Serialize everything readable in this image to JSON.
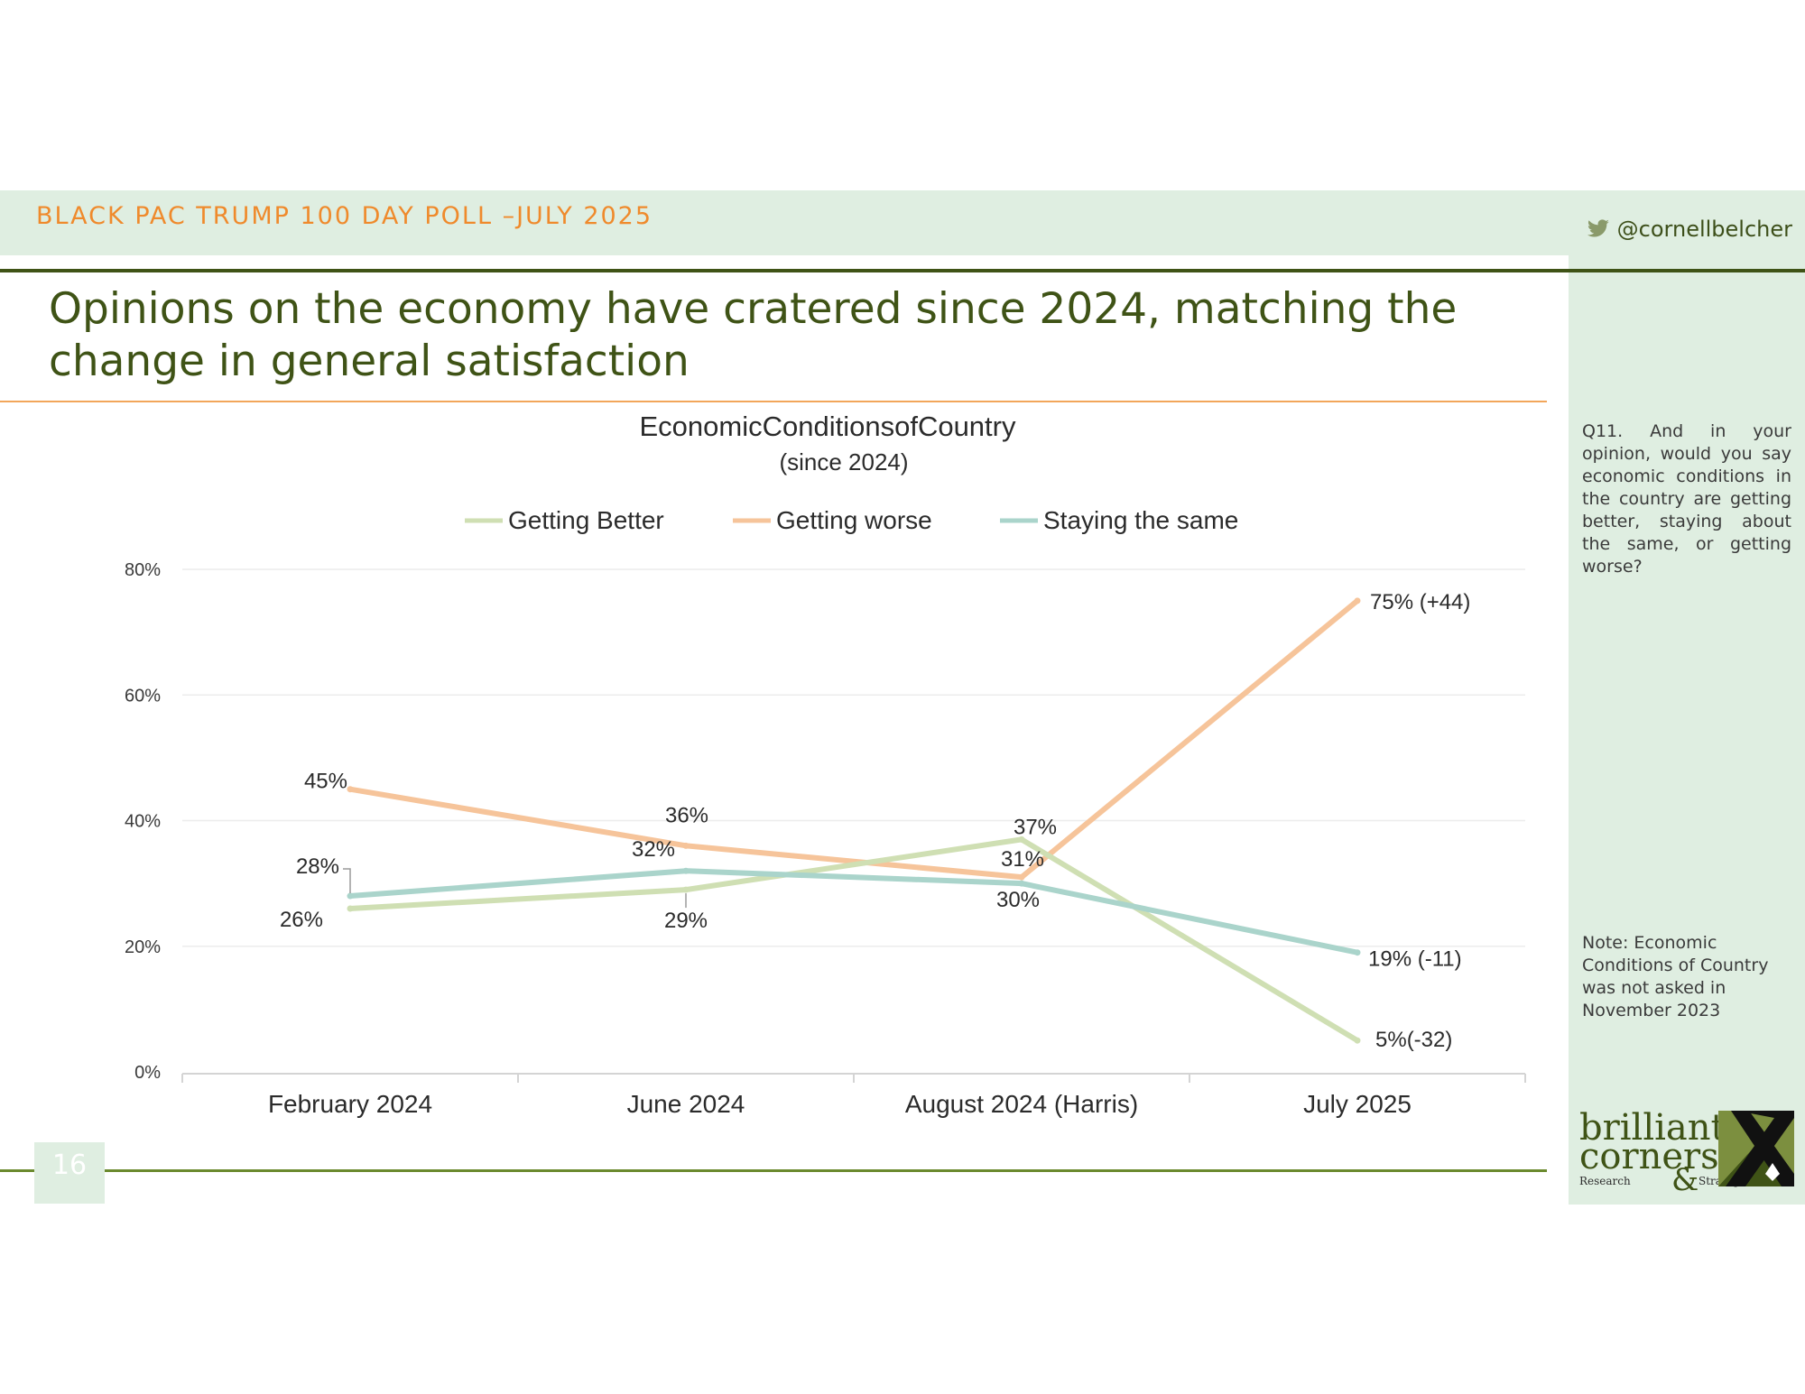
{
  "header": {
    "title": "BLACK PAC TRUMP 100 DAY POLL –JULY 2025",
    "handle": "@cornellbelcher"
  },
  "slide": {
    "title": "Opinions on the economy have cratered since 2024, matching the change in general satisfaction",
    "question": "Q11. And in your opinion, would you say economic conditions in the country are getting better, staying about the same, or getting worse?",
    "note": "Note: Economic Conditions of Country was not asked in November 2023",
    "page_number": "16"
  },
  "logo": {
    "line1": "brilliant",
    "line2": "corners",
    "amp": "&",
    "sub_left": "Research",
    "sub_right": "Strategies"
  },
  "colors": {
    "getting_better": "#cfdfb3",
    "getting_worse": "#f6c49a",
    "staying_same": "#aad4cb",
    "brand_green": "#3f5316",
    "brand_orange": "#ef8a2c",
    "panel_bg": "#dfeee1"
  },
  "chart_data": {
    "type": "line",
    "title": "EconomicConditionsofCountry",
    "subtitle": "(since 2024)",
    "categories": [
      "February 2024",
      "June 2024",
      "August 2024 (Harris)",
      "July 2025"
    ],
    "ylim": [
      0,
      80
    ],
    "yticks": [
      "0%",
      "20%",
      "40%",
      "60%",
      "80%"
    ],
    "ytick_values": [
      0,
      20,
      40,
      60,
      80
    ],
    "grid": true,
    "legend_position": "top",
    "series": [
      {
        "name": "Getting Better",
        "values": [
          26,
          29,
          37,
          5
        ],
        "labels": [
          "26%",
          "29%",
          "37%",
          "5%(-32)"
        ]
      },
      {
        "name": "Getting worse",
        "values": [
          45,
          36,
          31,
          75
        ],
        "labels": [
          "45%",
          "36%",
          "31%",
          "75% (+44)"
        ]
      },
      {
        "name": "Staying the same",
        "values": [
          28,
          32,
          30,
          19
        ],
        "labels": [
          "28%",
          "32%",
          "30%",
          "19% (-11)"
        ]
      }
    ]
  }
}
